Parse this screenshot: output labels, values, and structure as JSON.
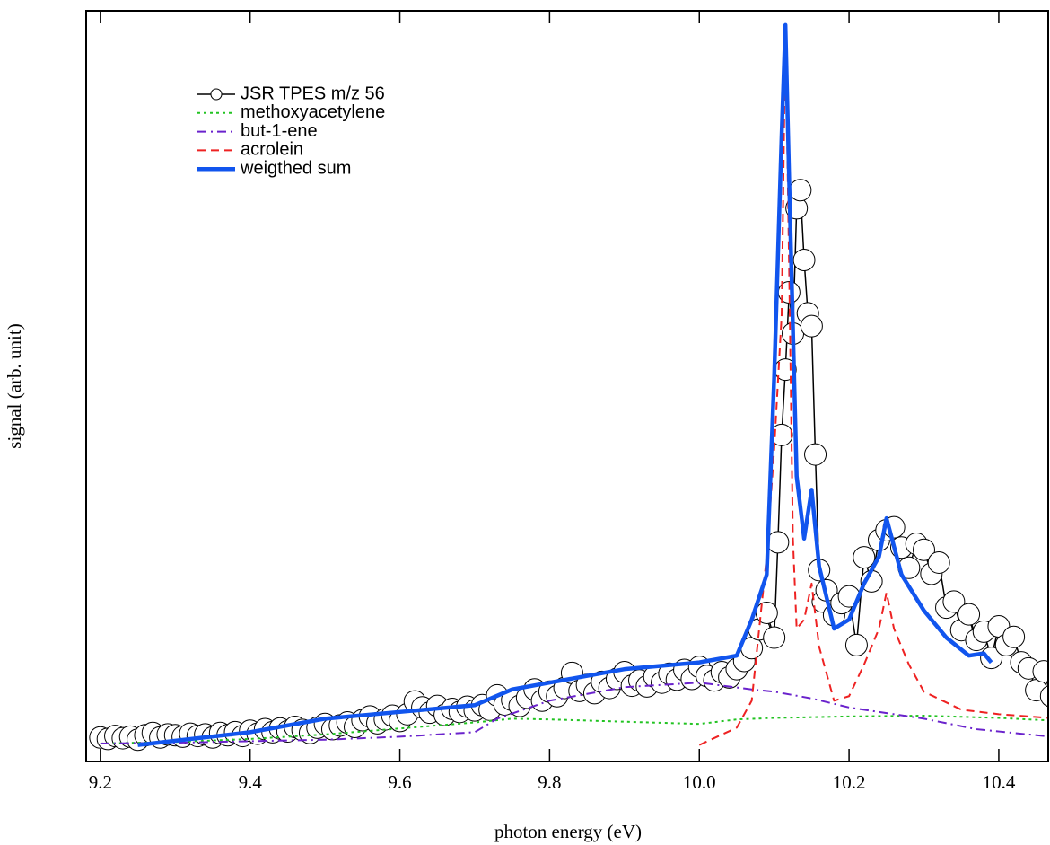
{
  "chart_data": {
    "type": "line",
    "xlabel": "photon energy (eV)",
    "ylabel": "signal (arb. unit)",
    "xlim": [
      9.181,
      10.466
    ],
    "ylim": [
      0,
      100
    ],
    "xticks": [
      9.2,
      9.4,
      9.6,
      9.8,
      {
        "value": 10,
        "label": "10.0"
      },
      10.2,
      10.4
    ],
    "legend": "upper left",
    "series": [
      {
        "name": "JSR TPES m/z 56",
        "color": "#000000",
        "linestyle": "solid",
        "linewidth": 1.5,
        "marker": "circle",
        "x": [
          9.2,
          9.21,
          9.22,
          9.23,
          9.24,
          9.25,
          9.26,
          9.27,
          9.28,
          9.29,
          9.3,
          9.31,
          9.32,
          9.33,
          9.34,
          9.35,
          9.36,
          9.37,
          9.38,
          9.39,
          9.4,
          9.41,
          9.42,
          9.43,
          9.44,
          9.45,
          9.46,
          9.47,
          9.48,
          9.49,
          9.5,
          9.51,
          9.52,
          9.53,
          9.54,
          9.55,
          9.56,
          9.57,
          9.58,
          9.59,
          9.6,
          9.61,
          9.62,
          9.63,
          9.64,
          9.65,
          9.66,
          9.67,
          9.68,
          9.69,
          9.7,
          9.71,
          9.72,
          9.73,
          9.74,
          9.75,
          9.76,
          9.77,
          9.78,
          9.79,
          9.8,
          9.81,
          9.82,
          9.83,
          9.84,
          9.85,
          9.86,
          9.87,
          9.88,
          9.89,
          9.9,
          9.91,
          9.92,
          9.93,
          9.94,
          9.95,
          9.96,
          9.97,
          9.98,
          9.99,
          10.0,
          10.01,
          10.02,
          10.03,
          10.04,
          10.05,
          10.06,
          10.07,
          10.08,
          10.09,
          10.1,
          10.105,
          10.11,
          10.115,
          10.12,
          10.125,
          10.13,
          10.135,
          10.14,
          10.145,
          10.15,
          10.155,
          10.16,
          10.165,
          10.17,
          10.18,
          10.19,
          10.2,
          10.21,
          10.22,
          10.23,
          10.24,
          10.25,
          10.26,
          10.27,
          10.28,
          10.29,
          10.3,
          10.31,
          10.32,
          10.33,
          10.34,
          10.35,
          10.36,
          10.37,
          10.38,
          10.39,
          10.4,
          10.41,
          10.42,
          10.43,
          10.44,
          10.45,
          10.46,
          10.47,
          10.48
        ],
        "values": [
          3.2,
          3.0,
          3.4,
          3.1,
          3.3,
          2.9,
          3.5,
          3.8,
          3.2,
          3.6,
          3.5,
          3.3,
          3.7,
          3.4,
          3.6,
          3.2,
          3.8,
          3.5,
          3.9,
          3.4,
          4.1,
          3.7,
          4.3,
          3.9,
          4.4,
          4.0,
          4.6,
          4.2,
          3.8,
          4.5,
          5.0,
          4.3,
          4.8,
          5.2,
          4.6,
          5.5,
          6.0,
          5.1,
          5.6,
          6.1,
          5.4,
          6.3,
          8.0,
          7.2,
          6.5,
          7.4,
          6.2,
          7.0,
          6.6,
          7.3,
          6.8,
          7.5,
          6.9,
          8.8,
          7.6,
          8.2,
          7.4,
          8.5,
          9.6,
          8.1,
          9.3,
          8.7,
          9.8,
          11.8,
          9.4,
          10.2,
          9.1,
          10.6,
          9.8,
          11.0,
          11.9,
          10.1,
          10.8,
          10.0,
          11.3,
          10.5,
          11.7,
          10.9,
          12.2,
          11.0,
          12.6,
          11.4,
          10.8,
          11.9,
          11.2,
          12.3,
          13.4,
          15.1,
          17.6,
          19.8,
          16.5,
          29.2,
          43.5,
          52.2,
          62.5,
          57.0,
          73.7,
          76.1,
          66.8,
          59.7,
          58.0,
          40.9,
          25.5,
          21.3,
          22.8,
          19.5,
          21.1,
          22.0,
          15.5,
          27.2,
          24.0,
          29.5,
          30.8,
          31.2,
          28.5,
          25.8,
          29.0,
          28.2,
          25.0,
          26.5,
          20.5,
          21.3,
          17.5,
          19.6,
          16.2,
          17.3,
          13.8,
          18.0,
          15.5,
          16.6,
          13.2,
          12.4,
          9.5,
          12.0,
          8.7,
          6.2
        ]
      },
      {
        "name": "methoxyacetylene",
        "color": "#22c322",
        "linestyle": "dotted",
        "linewidth": 2,
        "x": [
          9.2,
          9.3,
          9.4,
          9.5,
          9.6,
          9.7,
          9.75,
          9.8,
          9.9,
          10.0,
          10.05,
          10.1,
          10.2,
          10.3,
          10.4,
          10.48
        ],
        "values": [
          2.4,
          2.6,
          3.0,
          3.6,
          4.4,
          5.2,
          5.7,
          5.6,
          5.3,
          5.0,
          5.6,
          5.8,
          6.0,
          6.1,
          5.8,
          5.4
        ]
      },
      {
        "name": "but-1-ene",
        "color": "#6a22cc",
        "linestyle": "dashdot",
        "linewidth": 2,
        "x": [
          9.2,
          9.3,
          9.4,
          9.5,
          9.6,
          9.7,
          9.73,
          9.8,
          9.9,
          10.0,
          10.07,
          10.1,
          10.15,
          10.2,
          10.3,
          10.37,
          10.4,
          10.48
        ],
        "values": [
          2.4,
          2.5,
          2.7,
          2.9,
          3.3,
          3.9,
          5.7,
          8.1,
          9.9,
          10.5,
          9.6,
          9.3,
          8.4,
          7.2,
          5.7,
          4.3,
          4.0,
          3.2
        ]
      },
      {
        "name": "acrolein",
        "color": "#ee2222",
        "linestyle": "dashed",
        "linewidth": 2,
        "x": [
          10.0,
          10.05,
          10.07,
          10.08,
          10.09,
          10.1,
          10.11,
          10.115,
          10.12,
          10.125,
          10.13,
          10.14,
          10.15,
          10.16,
          10.18,
          10.2,
          10.22,
          10.24,
          10.25,
          10.26,
          10.28,
          10.3,
          10.35,
          10.4,
          10.48
        ],
        "values": [
          2.2,
          4.5,
          8.1,
          17.7,
          27.3,
          41.6,
          59.5,
          98.4,
          65.6,
          29.7,
          17.7,
          18.9,
          23.7,
          15.3,
          8.1,
          8.7,
          12.9,
          17.7,
          22.5,
          17.7,
          12.9,
          9.3,
          6.9,
          6.3,
          5.7
        ]
      },
      {
        "name": "weigthed sum",
        "color": "#1155ee",
        "linestyle": "solid",
        "linewidth": 4.5,
        "x": [
          9.25,
          9.4,
          9.5,
          9.6,
          9.7,
          9.75,
          9.8,
          9.9,
          10.0,
          10.05,
          10.07,
          10.09,
          10.1,
          10.11,
          10.115,
          10.12,
          10.13,
          10.14,
          10.15,
          10.16,
          10.18,
          10.2,
          10.22,
          10.24,
          10.25,
          10.27,
          10.3,
          10.33,
          10.36,
          10.38,
          10.39
        ],
        "values": [
          2.2,
          3.9,
          5.7,
          6.6,
          7.5,
          9.6,
          10.5,
          12.3,
          13.2,
          14.1,
          18.9,
          24.9,
          51.2,
          83.5,
          98.1,
          77.5,
          38.0,
          29.7,
          36.2,
          26.0,
          17.7,
          18.9,
          23.7,
          27.3,
          32.4,
          24.9,
          20.1,
          16.5,
          14.1,
          14.4,
          13.2
        ]
      }
    ]
  }
}
